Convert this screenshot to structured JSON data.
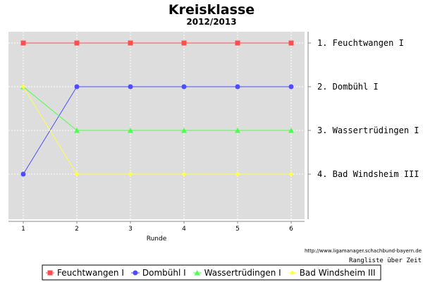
{
  "chart_data": {
    "type": "line",
    "title": "Kreisklasse",
    "subtitle": "2012/2013",
    "xlabel": "Runde",
    "x": [
      1,
      2,
      3,
      4,
      5,
      6
    ],
    "ylim": [
      1,
      5
    ],
    "y_inverted": true,
    "grid": true,
    "legend_position": "bottom",
    "rank_labels": [
      "1. Feuchtwangen I",
      "2. Dombühl I",
      "3. Wassertrüdingen I",
      "4. Bad Windsheim III"
    ],
    "series": [
      {
        "name": "Feuchtwangen I",
        "values": [
          1,
          1,
          1,
          1,
          1,
          1
        ],
        "color": "#ff4d4d",
        "marker": "square"
      },
      {
        "name": "Dombühl I",
        "values": [
          4,
          2,
          2,
          2,
          2,
          2
        ],
        "color": "#4d4dff",
        "marker": "circle"
      },
      {
        "name": "Wassertrüdingen I",
        "values": [
          2,
          3,
          3,
          3,
          3,
          3
        ],
        "color": "#4dff4d",
        "marker": "triangle"
      },
      {
        "name": "Bad Windsheim III",
        "values": [
          2,
          4,
          4,
          4,
          4,
          4
        ],
        "color": "#ffff4d",
        "marker": "diamond"
      }
    ],
    "source_url": "http://www.ligamanager.schachbund-bayern.de",
    "caption": "Rangliste über Zeit"
  },
  "colors": {
    "plot_background": "#dddddd",
    "grid": "#ffffff"
  }
}
